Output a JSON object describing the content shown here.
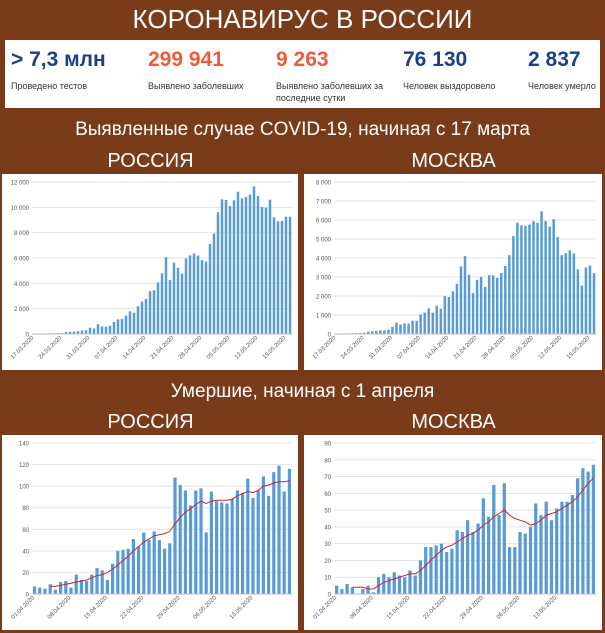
{
  "header": {
    "title": "КОРОНАВИРУС В РОССИИ"
  },
  "stats": [
    {
      "value": "> 7,3 млн",
      "label": "Проведено тестов",
      "color": "#1c3f8c"
    },
    {
      "value": "299 941",
      "label": "Выявлено заболевших",
      "color": "#ef5a3c"
    },
    {
      "value": "9 263",
      "label": "Выявлено заболевших за последние сутки",
      "color": "#ef5a3c"
    },
    {
      "value": "76 130",
      "label": "Человек выздоровело",
      "color": "#1c3f8c"
    },
    {
      "value": "2 837",
      "label": "Человек умерло",
      "color": "#1c3f8c"
    }
  ],
  "section1": {
    "title": "Выявленные случае COVID-19, начиная с 17 марта",
    "left": "РОССИЯ",
    "right": "МОСКВА"
  },
  "section2": {
    "title": "Умершие, начиная с 1 апреля",
    "left": "РОССИЯ",
    "right": "МОСКВА"
  },
  "chart_data": [
    {
      "type": "bar",
      "x": [
        "17.03.2020",
        "18.03.2020",
        "19.03.2020",
        "20.03.2020",
        "21.03.2020",
        "22.03.2020",
        "23.03.2020",
        "24.03.2020",
        "25.03.2020",
        "26.03.2020",
        "27.03.2020",
        "28.03.2020",
        "29.03.2020",
        "30.03.2020",
        "31.03.2020",
        "01.04.2020",
        "02.04.2020",
        "03.04.2020",
        "04.04.2020",
        "05.04.2020",
        "06.04.2020",
        "07.04.2020",
        "08.04.2020",
        "09.04.2020",
        "10.04.2020",
        "11.04.2020",
        "12.04.2020",
        "13.04.2020",
        "14.04.2020",
        "15.04.2020",
        "16.04.2020",
        "17.04.2020",
        "18.04.2020",
        "19.04.2020",
        "20.04.2020",
        "21.04.2020",
        "22.04.2020",
        "23.04.2020",
        "24.04.2020",
        "25.04.2020",
        "26.04.2020",
        "27.04.2020",
        "28.04.2020",
        "29.04.2020",
        "30.04.2020",
        "01.05.2020",
        "02.05.2020",
        "03.05.2020",
        "04.05.2020",
        "05.05.2020",
        "06.05.2020",
        "07.05.2020",
        "08.05.2020",
        "09.05.2020",
        "10.05.2020",
        "11.05.2020",
        "12.05.2020",
        "13.05.2020",
        "14.05.2020",
        "15.05.2020",
        "16.05.2020",
        "17.05.2020",
        "18.05.2020",
        "19.05.2020",
        "20.05.2020"
      ],
      "tick_labels": [
        "17.03.2020",
        "24.03.2020",
        "31.03.2020",
        "07.04.2020",
        "14.04.2020",
        "21.04.2020",
        "28.04.2020",
        "05.05.2020",
        "12.05.2020",
        "19.05.2020"
      ],
      "values": [
        30,
        20,
        50,
        50,
        60,
        60,
        70,
        60,
        160,
        180,
        200,
        230,
        270,
        300,
        500,
        440,
        770,
        600,
        580,
        650,
        950,
        1150,
        1180,
        1460,
        1790,
        1670,
        2190,
        2560,
        2770,
        3390,
        3450,
        4070,
        4790,
        6060,
        4270,
        5640,
        5230,
        4770,
        5970,
        6200,
        6360,
        6200,
        5840,
        5720,
        7100,
        7930,
        9620,
        10630,
        10580,
        10100,
        10560,
        11230,
        10700,
        10820,
        11010,
        11650,
        10900,
        10030,
        9970,
        10600,
        9200,
        8900,
        8930,
        9260,
        9260
      ],
      "ylim": [
        0,
        12000
      ],
      "yticks": [
        "0",
        "2 000",
        "4 000",
        "6 000",
        "8 000",
        "10 000",
        "12 000"
      ],
      "title": "",
      "xlabel": "",
      "ylabel": ""
    },
    {
      "type": "bar",
      "x": [
        "17.03.2020",
        "18.03.2020",
        "19.03.2020",
        "20.03.2020",
        "21.03.2020",
        "22.03.2020",
        "23.03.2020",
        "24.03.2020",
        "25.03.2020",
        "26.03.2020",
        "27.03.2020",
        "28.03.2020",
        "29.03.2020",
        "30.03.2020",
        "31.03.2020",
        "01.04.2020",
        "02.04.2020",
        "03.04.2020",
        "04.04.2020",
        "05.04.2020",
        "06.04.2020",
        "07.04.2020",
        "08.04.2020",
        "09.04.2020",
        "10.04.2020",
        "11.04.2020",
        "12.04.2020",
        "13.04.2020",
        "14.04.2020",
        "15.04.2020",
        "16.04.2020",
        "17.04.2020",
        "18.04.2020",
        "19.04.2020",
        "20.04.2020",
        "21.04.2020",
        "22.04.2020",
        "23.04.2020",
        "24.04.2020",
        "25.04.2020",
        "26.04.2020",
        "27.04.2020",
        "28.04.2020",
        "29.04.2020",
        "30.04.2020",
        "01.05.2020",
        "02.05.2020",
        "03.05.2020",
        "04.05.2020",
        "05.05.2020",
        "06.05.2020",
        "07.05.2020",
        "08.05.2020",
        "09.05.2020",
        "10.05.2020",
        "11.05.2020",
        "12.05.2020",
        "13.05.2020",
        "14.05.2020",
        "15.05.2020",
        "16.05.2020",
        "17.05.2020",
        "18.05.2020",
        "19.05.2020",
        "20.05.2020"
      ],
      "tick_labels": [
        "17.03.2020",
        "24.03.2020",
        "31.03.2020",
        "07.04.2020",
        "14.04.2020",
        "21.04.2020",
        "28.04.2020",
        "05.05.2020",
        "12.05.2020",
        "19.05.2020"
      ],
      "values": [
        20,
        20,
        30,
        30,
        40,
        40,
        50,
        70,
        120,
        140,
        160,
        190,
        200,
        230,
        380,
        600,
        500,
        560,
        550,
        700,
        700,
        1030,
        1120,
        1350,
        1120,
        1490,
        1330,
        2000,
        1950,
        2250,
        2640,
        3560,
        4100,
        3120,
        2150,
        2850,
        3000,
        2480,
        3100,
        3090,
        2950,
        3210,
        3580,
        4150,
        5150,
        5860,
        5720,
        5690,
        5760,
        5940,
        5850,
        6460,
        5950,
        5650,
        6040,
        5100,
        4150,
        4250,
        4400,
        4240,
        3400,
        2550,
        3500,
        3600,
        3200
      ],
      "ylim": [
        0,
        8000
      ],
      "yticks": [
        "0",
        "1 000",
        "2 000",
        "3 000",
        "4 000",
        "5 000",
        "6 000",
        "7 000",
        "8 000"
      ],
      "title": "",
      "xlabel": "",
      "ylabel": ""
    },
    {
      "type": "bar",
      "x": [
        "01.04.2020",
        "02.04.2020",
        "03.04.2020",
        "04.04.2020",
        "05.04.2020",
        "06.04.2020",
        "07.04.2020",
        "08.04.2020",
        "09.04.2020",
        "10.04.2020",
        "11.04.2020",
        "12.04.2020",
        "13.04.2020",
        "14.04.2020",
        "15.04.2020",
        "16.04.2020",
        "17.04.2020",
        "18.04.2020",
        "19.04.2020",
        "20.04.2020",
        "21.04.2020",
        "22.04.2020",
        "23.04.2020",
        "24.04.2020",
        "25.04.2020",
        "26.04.2020",
        "27.04.2020",
        "28.04.2020",
        "29.04.2020",
        "30.04.2020",
        "01.05.2020",
        "02.05.2020",
        "03.05.2020",
        "04.05.2020",
        "05.05.2020",
        "06.05.2020",
        "07.05.2020",
        "08.05.2020",
        "09.05.2020",
        "10.05.2020",
        "11.05.2020",
        "12.05.2020",
        "13.05.2020",
        "14.05.2020",
        "15.05.2020",
        "16.05.2020",
        "17.05.2020",
        "18.05.2020",
        "19.05.2020",
        "20.05.2020"
      ],
      "tick_labels": [
        "01.04.2020",
        "08.04.2020",
        "15.04.2020",
        "22.04.2020",
        "29.04.2020",
        "06.05.2020",
        "13.05.2020"
      ],
      "values": [
        7,
        6,
        5,
        9,
        4,
        11,
        12,
        6,
        18,
        13,
        12,
        18,
        24,
        22,
        13,
        28,
        40,
        41,
        42,
        51,
        44,
        57,
        50,
        58,
        50,
        42,
        47,
        108,
        101,
        96,
        82,
        96,
        98,
        57,
        95,
        86,
        85,
        84,
        88,
        96,
        94,
        107,
        89,
        96,
        109,
        91,
        113,
        119,
        95,
        116
      ],
      "smoothed": [
        null,
        null,
        null,
        7,
        7,
        8,
        9,
        10,
        11,
        12,
        13,
        15,
        17,
        18,
        20,
        23,
        27,
        31,
        35,
        40,
        44,
        48,
        51,
        54,
        55,
        56,
        58,
        65,
        71,
        76,
        79,
        83,
        86,
        84,
        86,
        87,
        87,
        87,
        88,
        91,
        93,
        95,
        94,
        96,
        100,
        101,
        103,
        104,
        104,
        105
      ],
      "ylim": [
        0,
        140
      ],
      "yticks": [
        "0",
        "20",
        "40",
        "60",
        "80",
        "100",
        "120",
        "140"
      ],
      "title": "",
      "xlabel": "",
      "ylabel": ""
    },
    {
      "type": "bar",
      "x": [
        "01.04.2020",
        "02.04.2020",
        "03.04.2020",
        "04.04.2020",
        "05.04.2020",
        "06.04.2020",
        "07.04.2020",
        "08.04.2020",
        "09.04.2020",
        "10.04.2020",
        "11.04.2020",
        "12.04.2020",
        "13.04.2020",
        "14.04.2020",
        "15.04.2020",
        "16.04.2020",
        "17.04.2020",
        "18.04.2020",
        "19.04.2020",
        "20.04.2020",
        "21.04.2020",
        "22.04.2020",
        "23.04.2020",
        "24.04.2020",
        "25.04.2020",
        "26.04.2020",
        "27.04.2020",
        "28.04.2020",
        "29.04.2020",
        "30.04.2020",
        "01.05.2020",
        "02.05.2020",
        "03.05.2020",
        "04.05.2020",
        "05.05.2020",
        "06.05.2020",
        "07.05.2020",
        "08.05.2020",
        "09.05.2020",
        "10.05.2020",
        "11.05.2020",
        "12.05.2020",
        "13.05.2020",
        "14.05.2020",
        "15.05.2020",
        "16.05.2020",
        "17.05.2020",
        "18.05.2020",
        "19.05.2020",
        "20.05.2020"
      ],
      "tick_labels": [
        "01.04.2020",
        "08.04.2020",
        "15.04.2020",
        "22.04.2020",
        "29.04.2020",
        "06.05.2020",
        "13.05.2020"
      ],
      "values": [
        5,
        3,
        6,
        4,
        0,
        3,
        5,
        1,
        10,
        12,
        10,
        13,
        11,
        10,
        14,
        11,
        20,
        28,
        28,
        29,
        30,
        25,
        27,
        38,
        37,
        44,
        37,
        42,
        57,
        46,
        65,
        47,
        66,
        28,
        28,
        37,
        36,
        40,
        54,
        47,
        55,
        44,
        51,
        55,
        55,
        59,
        69,
        75,
        73,
        77
      ],
      "smoothed": [
        null,
        null,
        null,
        4,
        4,
        4,
        3,
        3,
        5,
        7,
        8,
        9,
        10,
        11,
        12,
        12,
        14,
        17,
        20,
        23,
        26,
        28,
        29,
        31,
        33,
        35,
        36,
        38,
        41,
        43,
        46,
        48,
        50,
        47,
        45,
        44,
        43,
        41,
        42,
        44,
        47,
        48,
        49,
        51,
        53,
        55,
        58,
        62,
        66,
        69
      ],
      "ylim": [
        0,
        90
      ],
      "yticks": [
        "0",
        "10",
        "20",
        "30",
        "40",
        "50",
        "60",
        "70",
        "80",
        "90"
      ],
      "title": "",
      "xlabel": "",
      "ylabel": ""
    }
  ]
}
